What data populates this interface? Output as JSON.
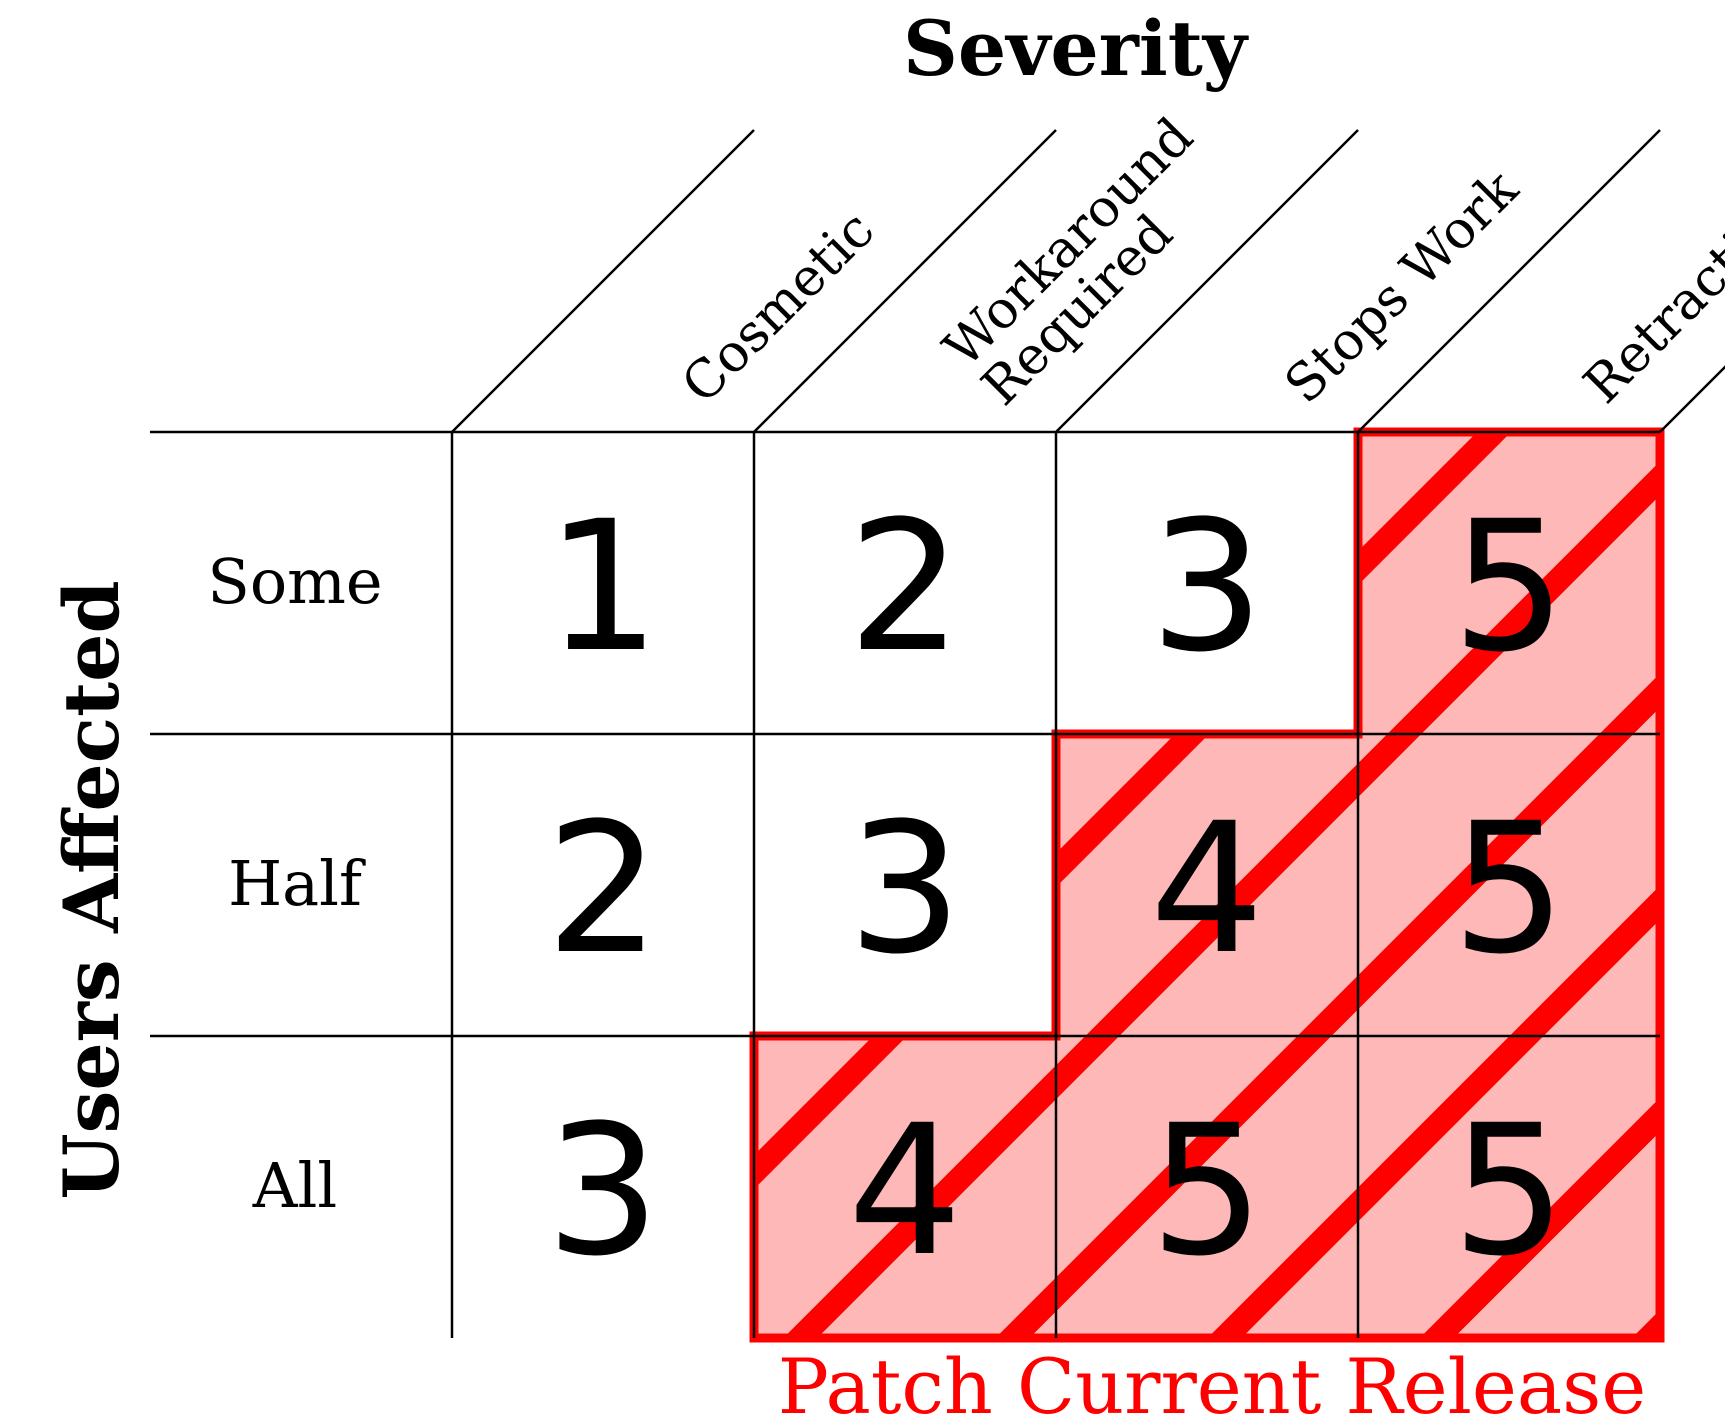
{
  "title": "Severity",
  "row_axis_title": "Users Affected",
  "columns": [
    {
      "lines": [
        "Cosmetic"
      ]
    },
    {
      "lines": [
        "Workaround",
        "Required"
      ]
    },
    {
      "lines": [
        "Stops Work"
      ]
    },
    {
      "lines": [
        "Retraction"
      ]
    }
  ],
  "rows": [
    {
      "label": "Some",
      "values": [
        "1",
        "2",
        "3",
        "5"
      ]
    },
    {
      "label": "Half",
      "values": [
        "2",
        "3",
        "4",
        "5"
      ]
    },
    {
      "label": "All",
      "values": [
        "3",
        "4",
        "5",
        "5"
      ]
    }
  ],
  "highlight": {
    "label": "Patch Current Release",
    "cells": [
      [
        0,
        3
      ],
      [
        1,
        2
      ],
      [
        1,
        3
      ],
      [
        2,
        1
      ],
      [
        2,
        2
      ],
      [
        2,
        3
      ]
    ],
    "fill_color": "#ffb8b8",
    "stripe_color": "#ff0000",
    "border_color": "#ff0000"
  }
}
